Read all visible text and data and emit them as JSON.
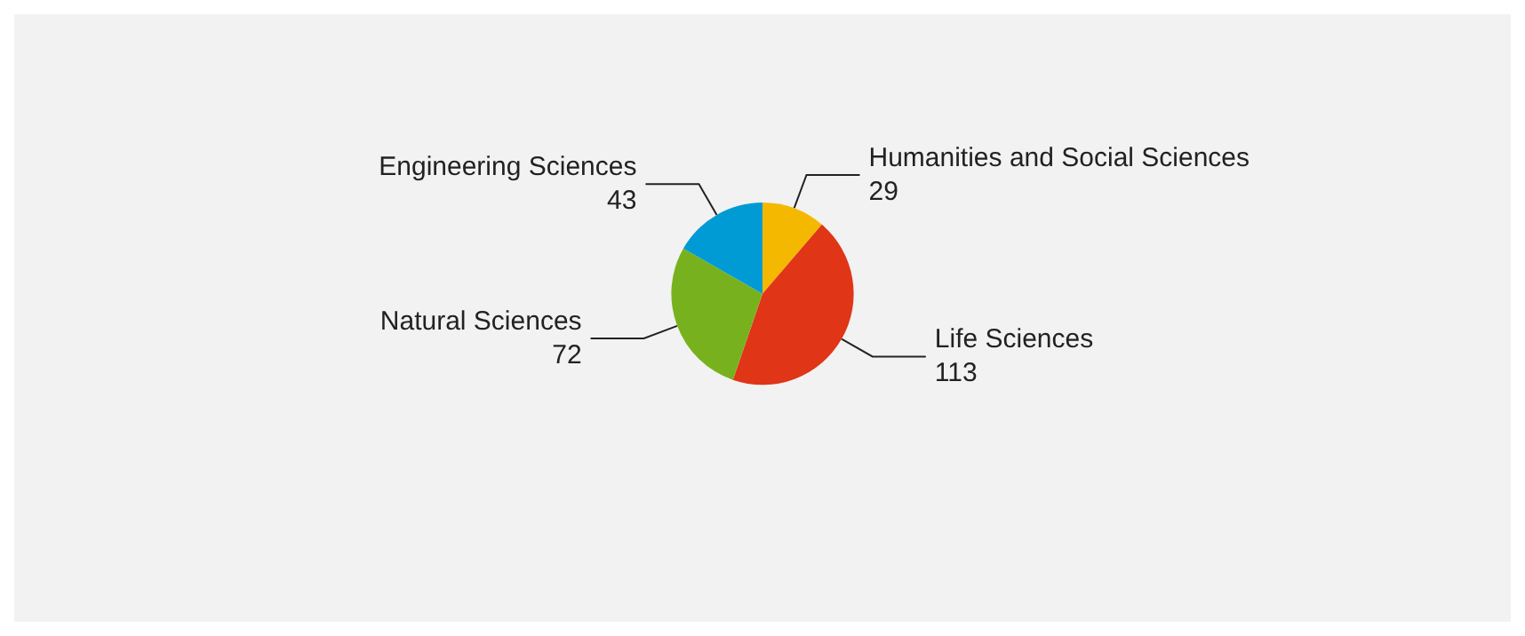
{
  "chart_data": {
    "type": "pie",
    "categories": [
      "Humanities and Social Sciences",
      "Life Sciences",
      "Natural Sciences",
      "Engineering Sciences"
    ],
    "values": [
      29,
      113,
      72,
      43
    ],
    "colors": [
      "#f5b800",
      "#e03517",
      "#77b21e",
      "#009bd5"
    ],
    "data_labels": true
  }
}
